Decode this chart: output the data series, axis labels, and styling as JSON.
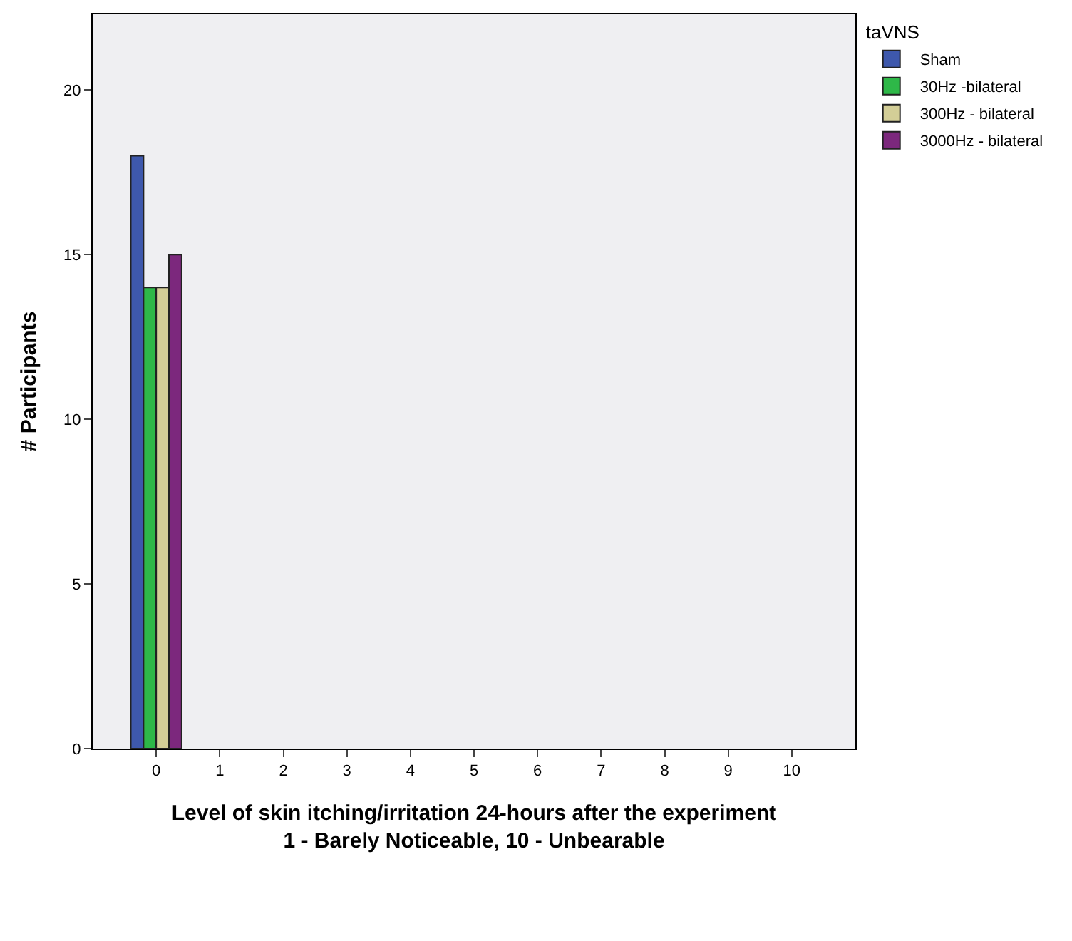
{
  "chart_data": {
    "type": "bar",
    "xlabel": "Level of skin itching/irritation 24-hours after the experiment\n1 - Barely Noticeable, 10 - Unbearable",
    "ylabel": "# Participants",
    "legend_title": "taVNS",
    "categories": [
      "0",
      "1",
      "2",
      "3",
      "4",
      "5",
      "6",
      "7",
      "8",
      "9",
      "10"
    ],
    "series": [
      {
        "name": "Sham",
        "color": "#3e58ac",
        "values": [
          18,
          0,
          0,
          0,
          0,
          0,
          0,
          0,
          0,
          0,
          0
        ]
      },
      {
        "name": "30Hz -bilateral",
        "color": "#2eb848",
        "values": [
          14,
          0,
          0,
          0,
          0,
          0,
          0,
          0,
          0,
          0,
          0
        ]
      },
      {
        "name": "300Hz - bilateral",
        "color": "#d3ce97",
        "values": [
          14,
          0,
          0,
          0,
          0,
          0,
          0,
          0,
          0,
          0,
          0
        ]
      },
      {
        "name": "3000Hz - bilateral",
        "color": "#7c287d",
        "values": [
          15,
          0,
          0,
          0,
          0,
          0,
          0,
          0,
          0,
          0,
          0
        ]
      }
    ],
    "ylim": [
      0,
      22.3
    ],
    "yticks": [
      0,
      5,
      10,
      15,
      20
    ],
    "grid": false,
    "legend": "top right"
  }
}
